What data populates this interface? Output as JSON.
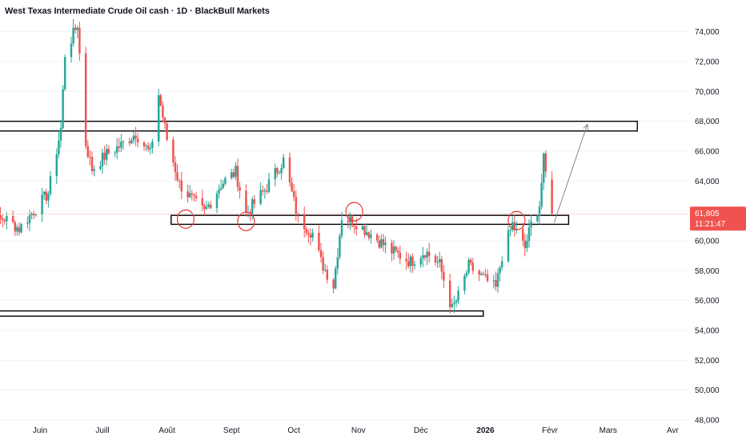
{
  "title": "West Texas Intermediate Crude Oil cash · 1D · BlackBull Markets",
  "colors": {
    "up": "#26a69a",
    "down": "#ef5350",
    "price_line": "#f7a9a8",
    "box": "#000000",
    "marker": "#e53935",
    "arrow": "#787b86",
    "grid": "#f0f3fa"
  },
  "price_tag": {
    "price": "61,805",
    "countdown": "11:21:47"
  },
  "chart_data": {
    "type": "candlestick",
    "title": "West Texas Intermediate Crude Oil cash · 1D · BlackBull Markets",
    "ylim": [
      47.3,
      75.8
    ],
    "y_ticks": [
      "48,000",
      "50,000",
      "52,000",
      "54,000",
      "56,000",
      "58,000",
      "60,000",
      "62,000",
      "64,000",
      "66,000",
      "68,000",
      "70,000",
      "72,000",
      "74,000"
    ],
    "y_tick_values": [
      48,
      50,
      52,
      54,
      56,
      58,
      60,
      62,
      64,
      66,
      68,
      70,
      72,
      74
    ],
    "x_ticks": [
      "Juin",
      "Juill",
      "Août",
      "Sept",
      "Oct",
      "Nov",
      "Déc",
      "2026",
      "Févr",
      "Mars",
      "Avr"
    ],
    "x_tick_dates": [
      "2025-06-01",
      "2025-07-01",
      "2025-08-01",
      "2025-09-01",
      "2025-10-01",
      "2025-11-01",
      "2025-12-01",
      "2026-01-01",
      "2026-02-01",
      "2026-03-01",
      "2026-04-01"
    ],
    "bold_x_ticks": [
      "2026"
    ],
    "last_price": 61.805,
    "anchors": [
      [
        "2025-05-01",
        62.4
      ],
      [
        "2025-05-08",
        61.2
      ],
      [
        "2025-05-15",
        61.5
      ],
      [
        "2025-05-22",
        60.8
      ],
      [
        "2025-05-29",
        62.0
      ],
      [
        "2025-06-05",
        63.2
      ],
      [
        "2025-06-11",
        67.5
      ],
      [
        "2025-06-13",
        72.5
      ],
      [
        "2025-06-19",
        74.5
      ],
      [
        "2025-06-23",
        66.5
      ],
      [
        "2025-06-26",
        64.8
      ],
      [
        "2025-07-03",
        65.8
      ],
      [
        "2025-07-10",
        66.4
      ],
      [
        "2025-07-17",
        67.2
      ],
      [
        "2025-07-24",
        65.8
      ],
      [
        "2025-07-28",
        69.8
      ],
      [
        "2025-08-01",
        66.8
      ],
      [
        "2025-08-07",
        63.8
      ],
      [
        "2025-08-14",
        62.6
      ],
      [
        "2025-08-19",
        61.9
      ],
      [
        "2025-08-27",
        63.8
      ],
      [
        "2025-09-03",
        64.6
      ],
      [
        "2025-09-08",
        61.8
      ],
      [
        "2025-09-17",
        63.4
      ],
      [
        "2025-09-26",
        65.4
      ],
      [
        "2025-10-03",
        61.5
      ],
      [
        "2025-10-10",
        60.5
      ],
      [
        "2025-10-14",
        58.6
      ],
      [
        "2025-10-20",
        57.0
      ],
      [
        "2025-10-24",
        61.6
      ],
      [
        "2025-10-31",
        61.2
      ],
      [
        "2025-11-10",
        60.1
      ],
      [
        "2025-11-17",
        59.3
      ],
      [
        "2025-11-21",
        59.0
      ],
      [
        "2025-11-26",
        58.6
      ],
      [
        "2025-12-03",
        59.3
      ],
      [
        "2025-12-10",
        58.4
      ],
      [
        "2025-12-16",
        55.4
      ],
      [
        "2025-12-19",
        56.3
      ],
      [
        "2025-12-24",
        58.3
      ],
      [
        "2025-12-31",
        57.5
      ],
      [
        "2026-01-06",
        56.8
      ],
      [
        "2026-01-09",
        59.0
      ],
      [
        "2026-01-14",
        61.1
      ],
      [
        "2026-01-20",
        59.5
      ],
      [
        "2026-01-23",
        61.1
      ],
      [
        "2026-01-27",
        62.4
      ],
      [
        "2026-01-29",
        65.4
      ],
      [
        "2026-02-02",
        61.805
      ]
    ],
    "zones": [
      {
        "from": "2025-05-01",
        "to": "2026-03-15",
        "low": 67.35,
        "high": 68.0
      },
      {
        "from": "2025-08-03",
        "to": "2026-02-10",
        "low": 61.1,
        "high": 61.7
      },
      {
        "from": "2025-05-01",
        "to": "2025-12-31",
        "low": 54.95,
        "high": 55.3
      }
    ],
    "touch_markers": [
      {
        "date": "2025-08-10",
        "price": 61.45
      },
      {
        "date": "2025-09-08",
        "price": 61.3
      },
      {
        "date": "2025-10-30",
        "price": 61.95
      },
      {
        "date": "2026-01-16",
        "price": 61.35
      }
    ],
    "projection_arrow": {
      "from": [
        "2026-02-03",
        61.2
      ],
      "to": [
        "2026-02-19",
        67.8
      ]
    }
  }
}
